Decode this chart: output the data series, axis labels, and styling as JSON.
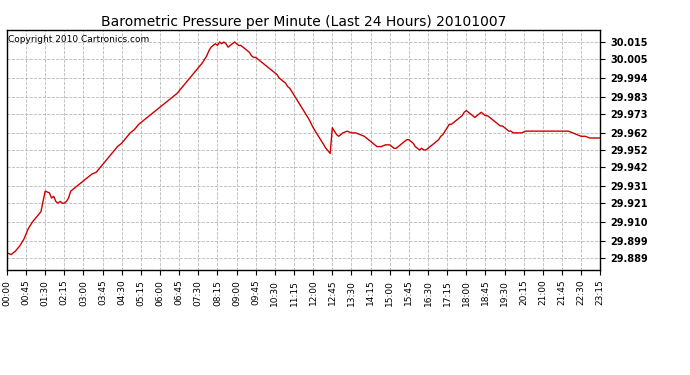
{
  "title": "Barometric Pressure per Minute (Last 24 Hours) 20101007",
  "copyright": "Copyright 2010 Cartronics.com",
  "line_color": "#cc0000",
  "background_color": "#ffffff",
  "grid_color": "#b0b0b0",
  "yticks": [
    29.889,
    29.899,
    29.91,
    29.921,
    29.931,
    29.942,
    29.952,
    29.962,
    29.973,
    29.983,
    29.994,
    30.005,
    30.015
  ],
  "ylim": [
    29.882,
    30.022
  ],
  "xtick_labels": [
    "00:00",
    "00:45",
    "01:30",
    "02:15",
    "03:00",
    "03:45",
    "04:30",
    "05:15",
    "06:00",
    "06:45",
    "07:30",
    "08:15",
    "09:00",
    "09:45",
    "10:30",
    "11:15",
    "12:00",
    "12:45",
    "13:30",
    "14:15",
    "15:00",
    "15:45",
    "16:30",
    "17:15",
    "18:00",
    "18:45",
    "19:30",
    "20:15",
    "21:00",
    "21:45",
    "22:30",
    "23:15"
  ],
  "x_values": [
    0,
    45,
    90,
    135,
    180,
    225,
    270,
    315,
    360,
    405,
    450,
    495,
    540,
    585,
    630,
    675,
    720,
    765,
    810,
    855,
    900,
    945,
    990,
    1035,
    1080,
    1125,
    1170,
    1215,
    1260,
    1305,
    1350,
    1395
  ],
  "pressure_data": [
    [
      0,
      29.892
    ],
    [
      10,
      29.891
    ],
    [
      20,
      29.893
    ],
    [
      30,
      29.896
    ],
    [
      40,
      29.9
    ],
    [
      50,
      29.906
    ],
    [
      60,
      29.91
    ],
    [
      70,
      29.913
    ],
    [
      80,
      29.916
    ],
    [
      90,
      29.928
    ],
    [
      100,
      29.927
    ],
    [
      105,
      29.924
    ],
    [
      110,
      29.925
    ],
    [
      115,
      29.922
    ],
    [
      120,
      29.921
    ],
    [
      125,
      29.922
    ],
    [
      130,
      29.921
    ],
    [
      135,
      29.921
    ],
    [
      140,
      29.922
    ],
    [
      145,
      29.924
    ],
    [
      150,
      29.928
    ],
    [
      160,
      29.93
    ],
    [
      170,
      29.932
    ],
    [
      180,
      29.934
    ],
    [
      190,
      29.936
    ],
    [
      200,
      29.938
    ],
    [
      210,
      29.939
    ],
    [
      220,
      29.942
    ],
    [
      230,
      29.945
    ],
    [
      240,
      29.948
    ],
    [
      250,
      29.951
    ],
    [
      260,
      29.954
    ],
    [
      270,
      29.956
    ],
    [
      280,
      29.959
    ],
    [
      290,
      29.962
    ],
    [
      300,
      29.964
    ],
    [
      310,
      29.967
    ],
    [
      320,
      29.969
    ],
    [
      330,
      29.971
    ],
    [
      340,
      29.973
    ],
    [
      350,
      29.975
    ],
    [
      360,
      29.977
    ],
    [
      370,
      29.979
    ],
    [
      380,
      29.981
    ],
    [
      390,
      29.983
    ],
    [
      400,
      29.985
    ],
    [
      410,
      29.988
    ],
    [
      420,
      29.991
    ],
    [
      430,
      29.994
    ],
    [
      440,
      29.997
    ],
    [
      450,
      30.0
    ],
    [
      460,
      30.003
    ],
    [
      465,
      30.005
    ],
    [
      470,
      30.007
    ],
    [
      475,
      30.01
    ],
    [
      480,
      30.012
    ],
    [
      485,
      30.013
    ],
    [
      490,
      30.014
    ],
    [
      495,
      30.013
    ],
    [
      500,
      30.015
    ],
    [
      505,
      30.014
    ],
    [
      510,
      30.015
    ],
    [
      515,
      30.014
    ],
    [
      520,
      30.012
    ],
    [
      525,
      30.013
    ],
    [
      530,
      30.014
    ],
    [
      535,
      30.015
    ],
    [
      540,
      30.014
    ],
    [
      545,
      30.013
    ],
    [
      550,
      30.013
    ],
    [
      555,
      30.012
    ],
    [
      560,
      30.011
    ],
    [
      565,
      30.01
    ],
    [
      570,
      30.009
    ],
    [
      575,
      30.007
    ],
    [
      580,
      30.006
    ],
    [
      585,
      30.006
    ],
    [
      590,
      30.005
    ],
    [
      595,
      30.004
    ],
    [
      600,
      30.003
    ],
    [
      610,
      30.001
    ],
    [
      620,
      29.999
    ],
    [
      630,
      29.997
    ],
    [
      635,
      29.996
    ],
    [
      640,
      29.994
    ],
    [
      645,
      29.993
    ],
    [
      650,
      29.992
    ],
    [
      655,
      29.991
    ],
    [
      660,
      29.989
    ],
    [
      665,
      29.988
    ],
    [
      670,
      29.986
    ],
    [
      675,
      29.984
    ],
    [
      680,
      29.982
    ],
    [
      690,
      29.978
    ],
    [
      700,
      29.974
    ],
    [
      710,
      29.97
    ],
    [
      720,
      29.965
    ],
    [
      730,
      29.961
    ],
    [
      740,
      29.957
    ],
    [
      750,
      29.953
    ],
    [
      760,
      29.95
    ],
    [
      765,
      29.965
    ],
    [
      770,
      29.963
    ],
    [
      775,
      29.961
    ],
    [
      780,
      29.96
    ],
    [
      790,
      29.962
    ],
    [
      800,
      29.963
    ],
    [
      810,
      29.962
    ],
    [
      820,
      29.962
    ],
    [
      830,
      29.961
    ],
    [
      840,
      29.96
    ],
    [
      850,
      29.958
    ],
    [
      855,
      29.957
    ],
    [
      860,
      29.956
    ],
    [
      865,
      29.955
    ],
    [
      870,
      29.954
    ],
    [
      880,
      29.954
    ],
    [
      890,
      29.955
    ],
    [
      900,
      29.955
    ],
    [
      905,
      29.954
    ],
    [
      910,
      29.953
    ],
    [
      915,
      29.953
    ],
    [
      920,
      29.954
    ],
    [
      925,
      29.955
    ],
    [
      930,
      29.956
    ],
    [
      935,
      29.957
    ],
    [
      940,
      29.958
    ],
    [
      945,
      29.958
    ],
    [
      950,
      29.957
    ],
    [
      955,
      29.956
    ],
    [
      960,
      29.954
    ],
    [
      965,
      29.953
    ],
    [
      970,
      29.952
    ],
    [
      975,
      29.953
    ],
    [
      980,
      29.952
    ],
    [
      985,
      29.952
    ],
    [
      990,
      29.953
    ],
    [
      995,
      29.954
    ],
    [
      1000,
      29.955
    ],
    [
      1005,
      29.956
    ],
    [
      1010,
      29.957
    ],
    [
      1015,
      29.958
    ],
    [
      1020,
      29.96
    ],
    [
      1025,
      29.961
    ],
    [
      1030,
      29.963
    ],
    [
      1035,
      29.965
    ],
    [
      1040,
      29.967
    ],
    [
      1045,
      29.967
    ],
    [
      1050,
      29.968
    ],
    [
      1055,
      29.969
    ],
    [
      1060,
      29.97
    ],
    [
      1065,
      29.971
    ],
    [
      1070,
      29.972
    ],
    [
      1075,
      29.974
    ],
    [
      1080,
      29.975
    ],
    [
      1085,
      29.974
    ],
    [
      1090,
      29.973
    ],
    [
      1095,
      29.972
    ],
    [
      1100,
      29.971
    ],
    [
      1105,
      29.972
    ],
    [
      1110,
      29.973
    ],
    [
      1115,
      29.974
    ],
    [
      1120,
      29.973
    ],
    [
      1125,
      29.972
    ],
    [
      1130,
      29.972
    ],
    [
      1135,
      29.971
    ],
    [
      1140,
      29.97
    ],
    [
      1145,
      29.969
    ],
    [
      1150,
      29.968
    ],
    [
      1155,
      29.967
    ],
    [
      1160,
      29.966
    ],
    [
      1165,
      29.966
    ],
    [
      1170,
      29.965
    ],
    [
      1175,
      29.964
    ],
    [
      1180,
      29.963
    ],
    [
      1185,
      29.963
    ],
    [
      1190,
      29.962
    ],
    [
      1195,
      29.962
    ],
    [
      1200,
      29.962
    ],
    [
      1210,
      29.962
    ],
    [
      1220,
      29.963
    ],
    [
      1230,
      29.963
    ],
    [
      1240,
      29.963
    ],
    [
      1250,
      29.963
    ],
    [
      1260,
      29.963
    ],
    [
      1270,
      29.963
    ],
    [
      1280,
      29.963
    ],
    [
      1290,
      29.963
    ],
    [
      1300,
      29.963
    ],
    [
      1310,
      29.963
    ],
    [
      1320,
      29.963
    ],
    [
      1330,
      29.962
    ],
    [
      1340,
      29.961
    ],
    [
      1350,
      29.96
    ],
    [
      1360,
      29.96
    ],
    [
      1370,
      29.959
    ],
    [
      1380,
      29.959
    ],
    [
      1390,
      29.959
    ],
    [
      1395,
      29.959
    ]
  ]
}
